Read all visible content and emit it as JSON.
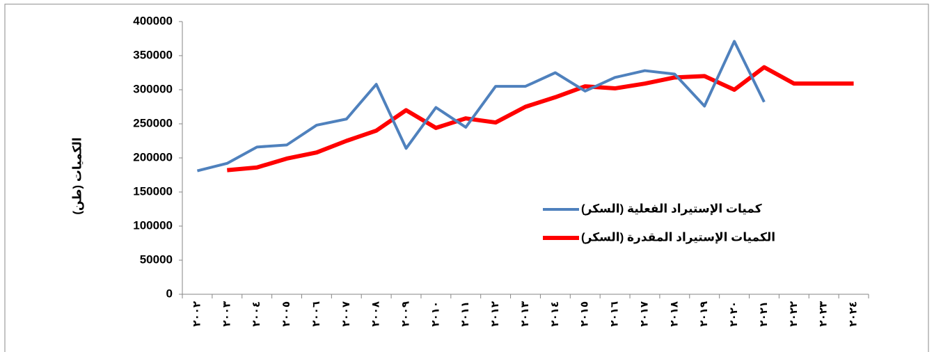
{
  "chart_data": {
    "type": "line",
    "y_label": "الكميات (طن)",
    "categories": [
      "٢٠٠٢",
      "٢٠٠٣",
      "٢٠٠٤",
      "٢٠٠٥",
      "٢٠٠٦",
      "٢٠٠٧",
      "٢٠٠٨",
      "٢٠٠٩",
      "٢٠١٠",
      "٢٠١١",
      "٢٠١٢",
      "٢٠١٣",
      "٢٠١٤",
      "٢٠١٥",
      "٢٠١٦",
      "٢٠١٧",
      "٢٠١٨",
      "٢٠١٩",
      "٢٠٢٠",
      "٢٠٢١",
      "٢٠٢٢",
      "٢٠٢٣",
      "٢٠٢٤"
    ],
    "series": [
      {
        "name": "كميات الإستيراد الفعلية (السكر)",
        "color": "#4f81bd",
        "values": [
          181000,
          192000,
          216000,
          219000,
          248000,
          257000,
          308000,
          214000,
          274000,
          245000,
          305000,
          305000,
          325000,
          298000,
          318000,
          328000,
          323000,
          276000,
          371000,
          282000,
          null,
          null,
          null
        ]
      },
      {
        "name": "الكميات الإستيراد المقدرة (السكر)",
        "color": "#ff0000",
        "values": [
          null,
          182000,
          186000,
          199000,
          208000,
          225000,
          240000,
          270000,
          244000,
          258000,
          252000,
          275000,
          289000,
          305000,
          302000,
          309000,
          318000,
          320000,
          300000,
          333000,
          309000,
          309000,
          309000
        ]
      }
    ],
    "ylim": [
      0,
      400000
    ],
    "yticks": [
      0,
      50000,
      100000,
      150000,
      200000,
      250000,
      300000,
      350000,
      400000
    ],
    "grid": false
  }
}
